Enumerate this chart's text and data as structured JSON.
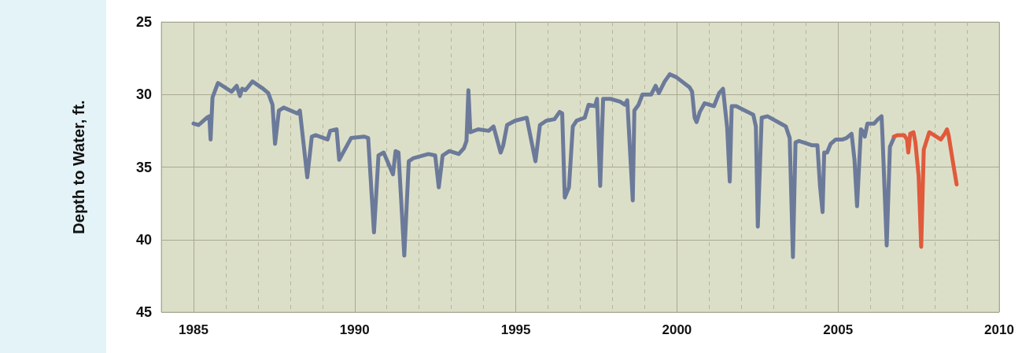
{
  "chart_data": {
    "type": "line",
    "ylabel": "Depth to Water, ft.",
    "xlim": [
      1984,
      2010
    ],
    "xticks": [
      1985,
      {
        "value": 1986,
        "label": null
      },
      {
        "value": 1987,
        "label": null
      },
      {
        "value": 1988,
        "label": null
      },
      {
        "value": 1989,
        "label": null
      },
      1990,
      {
        "value": 1991,
        "label": null
      },
      {
        "value": 1992,
        "label": null
      },
      {
        "value": 1993,
        "label": null
      },
      {
        "value": 1994,
        "label": null
      },
      1995,
      {
        "value": 1996,
        "label": null
      },
      {
        "value": 1997,
        "label": null
      },
      {
        "value": 1998,
        "label": null
      },
      {
        "value": 1999,
        "label": null
      },
      2000,
      {
        "value": 2001,
        "label": null
      },
      {
        "value": 2002,
        "label": null
      },
      {
        "value": 2003,
        "label": null
      },
      {
        "value": 2004,
        "label": null
      },
      2005,
      {
        "value": 2006,
        "label": null
      },
      {
        "value": 2007,
        "label": null
      },
      {
        "value": 2008,
        "label": null
      },
      {
        "value": 2009,
        "label": null
      },
      2010
    ],
    "ylim": [
      45,
      25
    ],
    "yticks": [
      25,
      30,
      35,
      40,
      45
    ],
    "grid": true,
    "marker": "none",
    "line_style": "solid",
    "series": [
      {
        "color": "#6c7a9a",
        "x": [
          1985.0,
          1985.16,
          1985.41,
          1985.49,
          1985.53,
          1985.59,
          1985.76,
          1986.18,
          1986.34,
          1986.44,
          1986.51,
          1986.61,
          1986.83,
          1987.16,
          1987.32,
          1987.45,
          1987.53,
          1987.65,
          1987.8,
          1988.22,
          1988.3,
          1988.53,
          1988.67,
          1988.79,
          1989.16,
          1989.24,
          1989.44,
          1989.52,
          1989.89,
          1990.3,
          1990.42,
          1990.6,
          1990.74,
          1990.9,
          1991.19,
          1991.27,
          1991.36,
          1991.54,
          1991.68,
          1991.81,
          1992.29,
          1992.5,
          1992.61,
          1992.73,
          1992.94,
          1993.23,
          1993.39,
          1993.47,
          1993.53,
          1993.59,
          1993.83,
          1994.16,
          1994.31,
          1994.53,
          1994.61,
          1994.73,
          1994.98,
          1995.34,
          1995.61,
          1995.75,
          1995.95,
          1996.2,
          1996.36,
          1996.44,
          1996.52,
          1996.65,
          1996.77,
          1996.89,
          1997.14,
          1997.26,
          1997.46,
          1997.52,
          1997.62,
          1997.71,
          1997.95,
          1998.24,
          1998.38,
          1998.46,
          1998.63,
          1998.68,
          1998.81,
          1998.93,
          1999.2,
          1999.34,
          1999.44,
          1999.62,
          1999.78,
          1999.98,
          2000.39,
          2000.47,
          2000.55,
          2000.61,
          2000.71,
          2000.86,
          2001.15,
          2001.31,
          2001.43,
          2001.56,
          2001.64,
          2001.7,
          2001.84,
          2002.2,
          2002.37,
          2002.45,
          2002.51,
          2002.63,
          2002.81,
          2003.3,
          2003.38,
          2003.5,
          2003.6,
          2003.68,
          2003.79,
          2004.2,
          2004.36,
          2004.44,
          2004.52,
          2004.57,
          2004.66,
          2004.77,
          2004.93,
          2005.14,
          2005.26,
          2005.42,
          2005.51,
          2005.59,
          2005.71,
          2005.79,
          2005.83,
          2005.91,
          2006.12,
          2006.24,
          2006.35,
          2006.38,
          2006.51,
          2006.61,
          2006.73
        ],
        "values": [
          32.0,
          32.1,
          31.6,
          31.5,
          33.1,
          30.2,
          29.2,
          29.8,
          29.4,
          30.1,
          29.6,
          29.7,
          29.1,
          29.6,
          29.9,
          30.7,
          33.4,
          31.1,
          30.9,
          31.3,
          31.1,
          35.7,
          32.9,
          32.8,
          33.1,
          32.5,
          32.4,
          34.5,
          33.0,
          32.9,
          33.0,
          39.5,
          34.2,
          34.0,
          35.5,
          33.9,
          34.0,
          41.1,
          34.6,
          34.4,
          34.1,
          34.2,
          36.4,
          34.2,
          33.9,
          34.1,
          33.7,
          33.2,
          29.7,
          32.6,
          32.4,
          32.5,
          32.2,
          34.0,
          33.5,
          32.1,
          31.8,
          31.6,
          34.6,
          32.1,
          31.8,
          31.7,
          31.2,
          31.3,
          37.1,
          36.4,
          32.2,
          31.8,
          31.6,
          30.7,
          30.8,
          30.3,
          36.3,
          30.3,
          30.3,
          30.5,
          30.7,
          30.4,
          37.3,
          31.1,
          30.7,
          30.0,
          30.0,
          29.4,
          29.9,
          29.1,
          28.6,
          28.8,
          29.5,
          29.8,
          31.6,
          31.9,
          31.2,
          30.6,
          30.8,
          29.9,
          29.6,
          32.3,
          36.0,
          30.8,
          30.8,
          31.2,
          31.4,
          32.2,
          39.1,
          31.6,
          31.5,
          32.1,
          32.2,
          33.0,
          41.2,
          33.3,
          33.2,
          33.5,
          33.5,
          36.3,
          38.1,
          34.0,
          34.0,
          33.4,
          33.1,
          33.1,
          33.0,
          32.7,
          34.5,
          37.7,
          32.4,
          32.6,
          32.9,
          32.0,
          32.0,
          31.7,
          31.5,
          32.9,
          40.4,
          33.6,
          33.0
        ]
      },
      {
        "color": "#e05a3c",
        "x": [
          2006.73,
          2006.85,
          2007.05,
          2007.14,
          2007.18,
          2007.24,
          2007.34,
          2007.4,
          2007.5,
          2007.58,
          2007.66,
          2007.83,
          2008.19,
          2008.31,
          2008.38,
          2008.43,
          2008.56,
          2008.68
        ],
        "values": [
          32.9,
          32.8,
          32.8,
          33.1,
          34.0,
          32.7,
          32.6,
          33.3,
          35.6,
          40.5,
          33.8,
          32.6,
          33.1,
          32.7,
          32.4,
          32.8,
          34.6,
          36.2
        ]
      }
    ]
  }
}
